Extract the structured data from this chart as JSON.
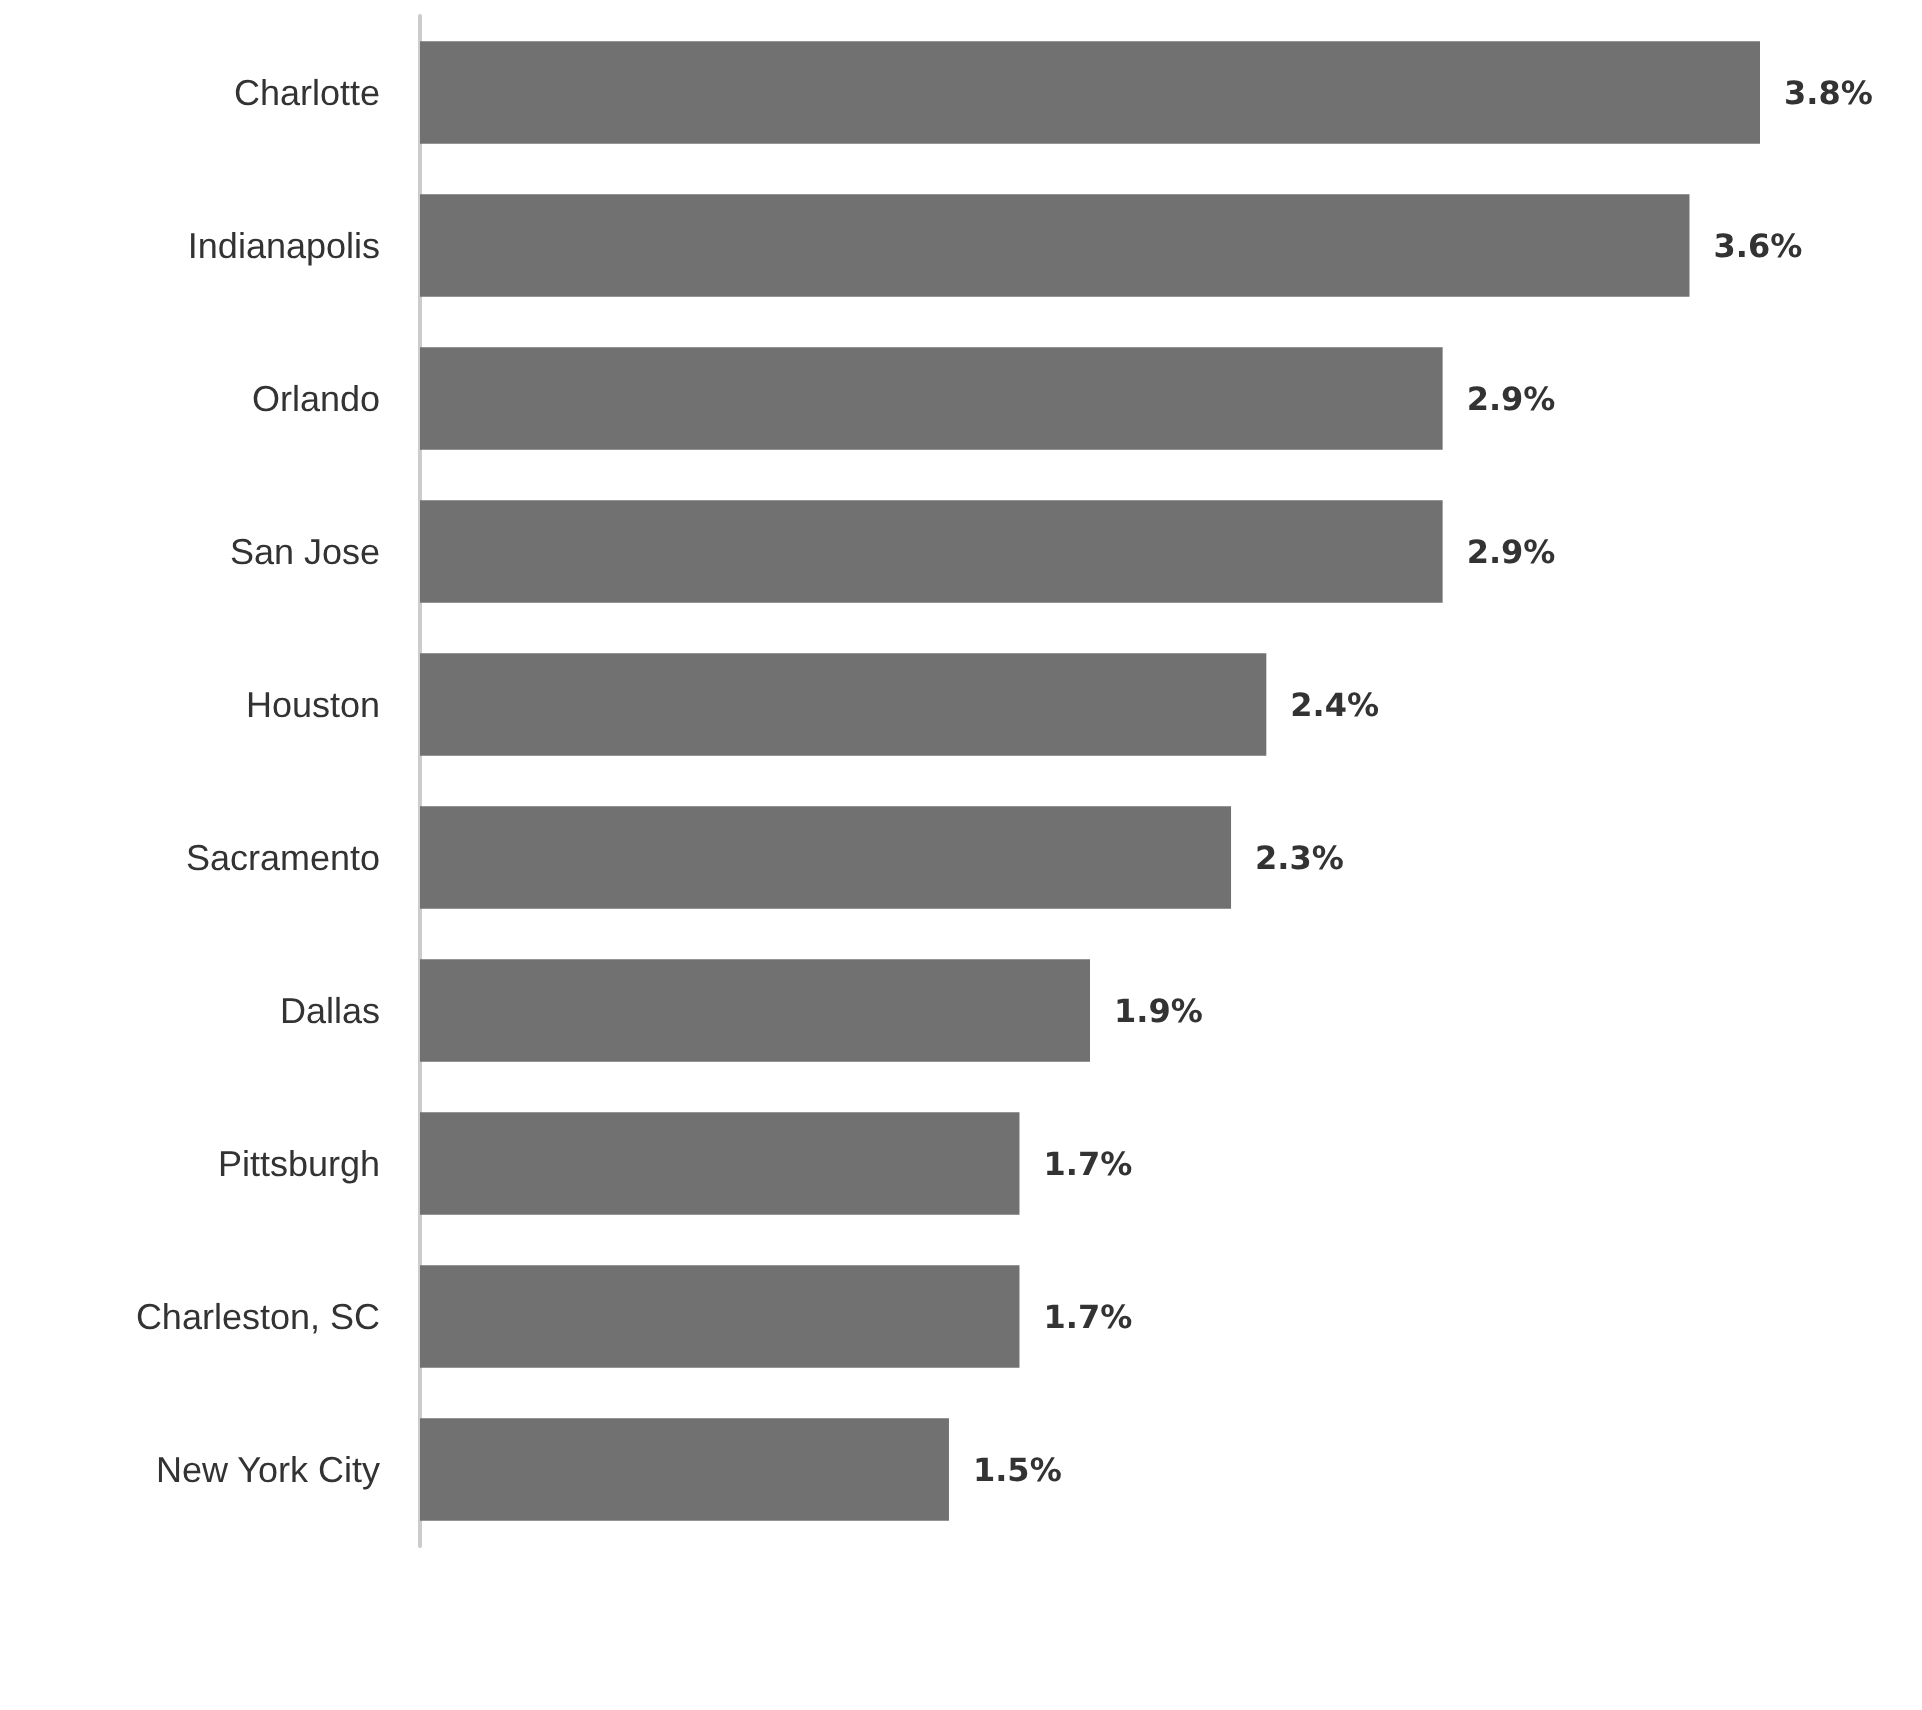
{
  "chart_data": {
    "type": "bar",
    "orientation": "horizontal",
    "categories": [
      "Charlotte",
      "Indianapolis",
      "Orlando",
      "San Jose",
      "Houston",
      "Sacramento",
      "Dallas",
      "Pittsburgh",
      "Charleston, SC",
      "New York City"
    ],
    "values": [
      3.8,
      3.6,
      2.9,
      2.9,
      2.4,
      2.3,
      1.9,
      1.7,
      1.7,
      1.5
    ],
    "value_labels": [
      "3.8%",
      "3.6%",
      "2.9%",
      "2.9%",
      "2.4%",
      "2.3%",
      "1.9%",
      "1.7%",
      "1.7%",
      "1.5%"
    ],
    "color": "#717171"
  }
}
